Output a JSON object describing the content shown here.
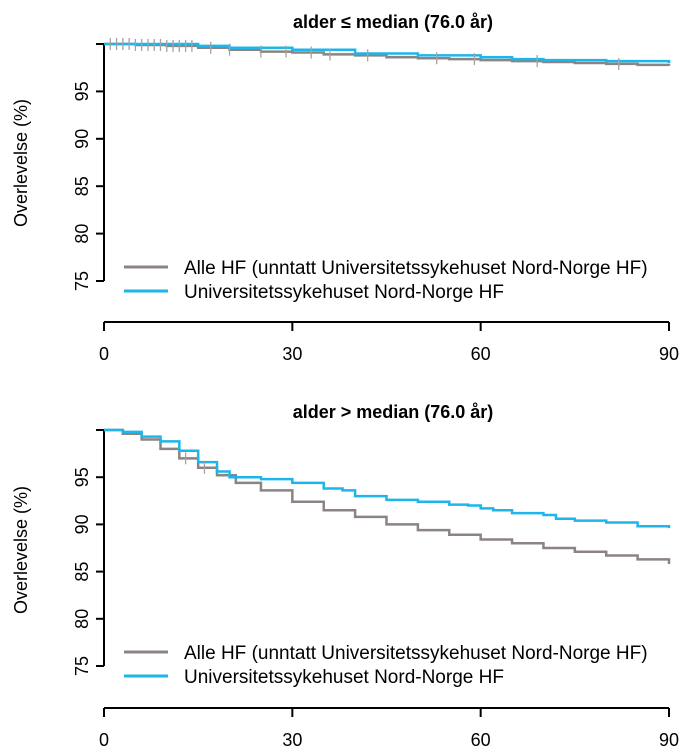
{
  "chart_data": [
    {
      "type": "line",
      "title": "alder ≤ median (76.0 år)",
      "xlabel": "",
      "ylabel": "Overlevelse (%)",
      "xlim": [
        0,
        90
      ],
      "ylim": [
        75,
        100
      ],
      "x_ticks": [
        "0",
        "30",
        "60",
        "90"
      ],
      "y_ticks": [
        "75",
        "80",
        "85",
        "90",
        "95"
      ],
      "legend_position": "bottom-left",
      "series": [
        {
          "name": "Alle HF (unntatt Universitetssykehuset Nord-Norge HF)",
          "color": "#8c8482",
          "x": [
            0,
            5,
            10,
            15,
            20,
            25,
            30,
            35,
            40,
            45,
            50,
            55,
            60,
            65,
            70,
            75,
            80,
            85,
            90
          ],
          "y": [
            100,
            99.9,
            99.8,
            99.6,
            99.4,
            99.2,
            99.1,
            98.9,
            98.8,
            98.6,
            98.5,
            98.4,
            98.3,
            98.2,
            98.1,
            98.0,
            97.9,
            97.8,
            97.7
          ]
        },
        {
          "name": "Universitetssykehuset Nord-Norge HF",
          "color": "#1cb6ec",
          "x": [
            0,
            10,
            15,
            20,
            30,
            40,
            50,
            60,
            65,
            70,
            80,
            90
          ],
          "y": [
            100,
            100,
            99.8,
            99.6,
            99.4,
            99.0,
            98.8,
            98.6,
            98.4,
            98.3,
            98.2,
            98.0
          ]
        }
      ],
      "censor_marks": {
        "series": "Alle HF (unntatt Universitetssykehuset Nord-Norge HF)",
        "x": [
          1,
          2,
          3,
          4,
          5,
          6,
          7,
          8,
          9,
          10,
          11,
          12,
          13,
          14,
          17,
          20,
          25,
          29,
          33,
          36,
          42,
          53,
          59,
          69,
          82
        ]
      }
    },
    {
      "type": "line",
      "title": "alder > median (76.0 år)",
      "xlabel": "",
      "ylabel": "Overlevelse (%)",
      "xlim": [
        0,
        90
      ],
      "ylim": [
        75,
        100
      ],
      "x_ticks": [
        "0",
        "30",
        "60",
        "90"
      ],
      "y_ticks": [
        "75",
        "80",
        "85",
        "90",
        "95"
      ],
      "legend_position": "bottom-left",
      "series": [
        {
          "name": "Alle HF (unntatt Universitetssykehuset Nord-Norge HF)",
          "color": "#8c8482",
          "x": [
            0,
            3,
            6,
            9,
            12,
            15,
            18,
            21,
            25,
            30,
            35,
            40,
            45,
            50,
            55,
            60,
            65,
            70,
            75,
            80,
            85,
            90
          ],
          "y": [
            100,
            99.6,
            99.0,
            98.0,
            97.0,
            96.0,
            95.2,
            94.4,
            93.6,
            92.4,
            91.5,
            90.8,
            90.0,
            89.4,
            88.9,
            88.4,
            88.0,
            87.5,
            87.1,
            86.7,
            86.3,
            85.8
          ]
        },
        {
          "name": "Universitetssykehuset Nord-Norge HF",
          "color": "#1cb6ec",
          "x": [
            0,
            3,
            6,
            9,
            12,
            15,
            18,
            20,
            25,
            30,
            35,
            38,
            40,
            45,
            50,
            55,
            58,
            60,
            62,
            65,
            70,
            72,
            75,
            80,
            85,
            90
          ],
          "y": [
            100,
            99.8,
            99.3,
            98.8,
            97.8,
            96.6,
            95.6,
            95.0,
            94.8,
            94.4,
            93.8,
            93.6,
            93.0,
            92.6,
            92.4,
            92.1,
            92.0,
            91.7,
            91.5,
            91.2,
            91.0,
            90.6,
            90.4,
            90.2,
            89.8,
            89.6
          ]
        }
      ],
      "censor_marks": {
        "series": "Alle HF (unntatt Universitetssykehuset Nord-Norge HF)",
        "x": [
          13,
          16
        ]
      }
    }
  ]
}
